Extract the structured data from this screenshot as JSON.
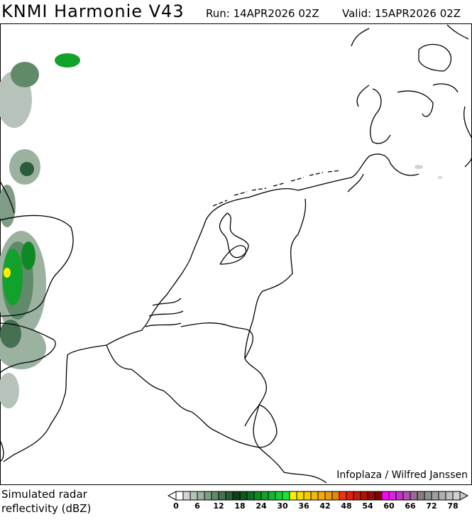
{
  "header": {
    "title": "KNMI Harmonie V43",
    "run": "Run: 14APR2026 02Z",
    "valid": "Valid: 15APR2026 02Z"
  },
  "map": {
    "region": "Netherlands, Belgium, North Sea",
    "credit": "Infoplaza / Wilfred Janssen"
  },
  "legend": {
    "label_line1": "Simulated radar",
    "label_line2": "reflectivity (dBZ)",
    "ticks": [
      "0",
      "6",
      "12",
      "18",
      "24",
      "30",
      "36",
      "42",
      "48",
      "54",
      "60",
      "66",
      "72",
      "78"
    ],
    "colors": [
      "#ffffff",
      "#d4d4d4",
      "#b6c2ba",
      "#9cb2a0",
      "#7e9c86",
      "#608a6a",
      "#467052",
      "#2c5c3a",
      "#0c4418",
      "#0c5a1c",
      "#0c7222",
      "#0e8a24",
      "#10a22a",
      "#10b82e",
      "#12d032",
      "#14e838",
      "#fff000",
      "#fadc00",
      "#f6cc00",
      "#f4bc00",
      "#f0ac00",
      "#ec9a00",
      "#e88600",
      "#f03410",
      "#e02410",
      "#c81c0c",
      "#b01408",
      "#980c08",
      "#800000",
      "#ff00ff",
      "#e020e0",
      "#c830c8",
      "#b050b0",
      "#9c689c",
      "#808080",
      "#909090",
      "#a0a0a0",
      "#b0b0b0",
      "#c0c0c0",
      "#d0d0d0"
    ]
  }
}
